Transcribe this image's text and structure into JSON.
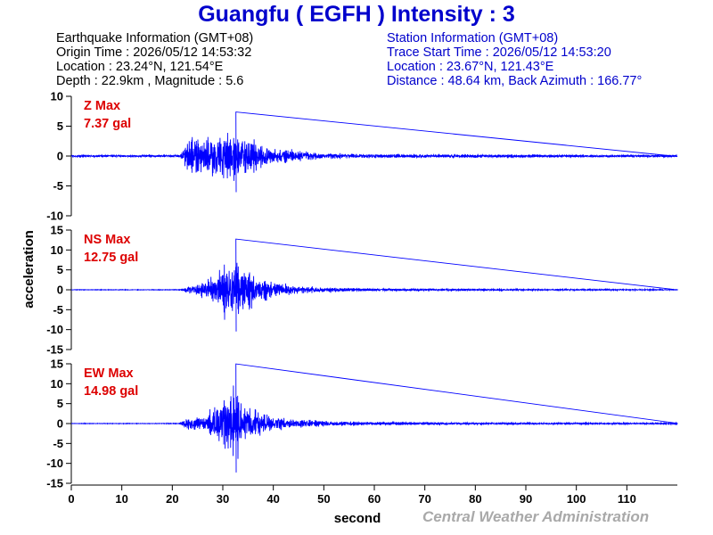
{
  "header": {
    "title": "Guangfu ( EGFH ) Intensity : 3",
    "earthquake": [
      "Earthquake Information (GMT+08)",
      "Origin Time : 2026/05/12 14:53:32",
      "Location : 23.24°N, 121.54°E",
      "Depth : 22.9km , Magnitude : 5.6"
    ],
    "station": [
      "Station Information (GMT+08)",
      "Trace Start Time : 2026/05/12 14:53:20",
      "Location : 23.67°N, 121.43°E",
      "Distance : 48.64 km, Back Azimuth : 166.77°"
    ]
  },
  "credit": "Central Weather Administration",
  "colors": {
    "trace": "#0000ff",
    "title": "#0000cc",
    "maxlabel": "#dd0000",
    "credit": "#a9a9a9"
  },
  "chart_data": {
    "type": "line",
    "xlabel": "second",
    "ylabel": "acceleration",
    "xlim": [
      0,
      120
    ],
    "xticks": [
      0,
      10,
      20,
      30,
      40,
      50,
      60,
      70,
      80,
      90,
      100,
      110
    ],
    "grid": false,
    "panels": [
      {
        "name": "Z",
        "max_label": "Z Max",
        "max_value": "7.37 gal",
        "peak": 7.37,
        "ylim": [
          -10,
          10
        ],
        "yticks": [
          10,
          5,
          0,
          -5,
          -10
        ],
        "envelope": [
          [
            0,
            0.25
          ],
          [
            21.5,
            0.3
          ],
          [
            22.5,
            3.0
          ],
          [
            24,
            4.5
          ],
          [
            26,
            5.2
          ],
          [
            28,
            6.0
          ],
          [
            30,
            6.5
          ],
          [
            32,
            6.8
          ],
          [
            34,
            5.5
          ],
          [
            36,
            4.2
          ],
          [
            38,
            3.0
          ],
          [
            40,
            2.0
          ],
          [
            45,
            1.4
          ],
          [
            50,
            0.8
          ],
          [
            55,
            0.6
          ],
          [
            60,
            0.55
          ],
          [
            70,
            0.5
          ],
          [
            80,
            0.45
          ],
          [
            90,
            0.4
          ],
          [
            100,
            0.35
          ],
          [
            110,
            0.3
          ],
          [
            120,
            0.3
          ]
        ]
      },
      {
        "name": "NS",
        "max_label": "NS Max",
        "max_value": "12.75 gal",
        "peak": 12.75,
        "ylim": [
          -15,
          15
        ],
        "yticks": [
          15,
          10,
          5,
          0,
          -5,
          -10,
          -15
        ],
        "envelope": [
          [
            0,
            0.1
          ],
          [
            21.5,
            0.15
          ],
          [
            22.5,
            1.0
          ],
          [
            25,
            2.5
          ],
          [
            27,
            4.5
          ],
          [
            29,
            7.0
          ],
          [
            30,
            9.0
          ],
          [
            31,
            10.5
          ],
          [
            32,
            11.5
          ],
          [
            33,
            10.0
          ],
          [
            34,
            8.0
          ],
          [
            36,
            6.5
          ],
          [
            38,
            4.5
          ],
          [
            40,
            3.0
          ],
          [
            45,
            1.6
          ],
          [
            50,
            1.0
          ],
          [
            60,
            0.55
          ],
          [
            70,
            0.45
          ],
          [
            80,
            0.4
          ],
          [
            90,
            0.3
          ],
          [
            110,
            0.25
          ],
          [
            120,
            0.2
          ]
        ]
      },
      {
        "name": "EW",
        "max_label": "EW Max",
        "max_value": "14.98 gal",
        "peak": 14.98,
        "ylim": [
          -15,
          15
        ],
        "yticks": [
          15,
          10,
          5,
          0,
          -5,
          -10,
          -15
        ],
        "envelope": [
          [
            0,
            0.1
          ],
          [
            21.5,
            0.15
          ],
          [
            22.5,
            1.8
          ],
          [
            25,
            3.0
          ],
          [
            27,
            4.5
          ],
          [
            29,
            7.5
          ],
          [
            30,
            11.0
          ],
          [
            31,
            12.5
          ],
          [
            32,
            13.5
          ],
          [
            33,
            11.0
          ],
          [
            34,
            8.0
          ],
          [
            36,
            6.0
          ],
          [
            38,
            4.5
          ],
          [
            40,
            3.0
          ],
          [
            45,
            1.8
          ],
          [
            50,
            1.1
          ],
          [
            60,
            0.7
          ],
          [
            70,
            0.55
          ],
          [
            80,
            0.45
          ],
          [
            90,
            0.4
          ],
          [
            100,
            0.35
          ],
          [
            120,
            0.3
          ]
        ]
      }
    ]
  }
}
